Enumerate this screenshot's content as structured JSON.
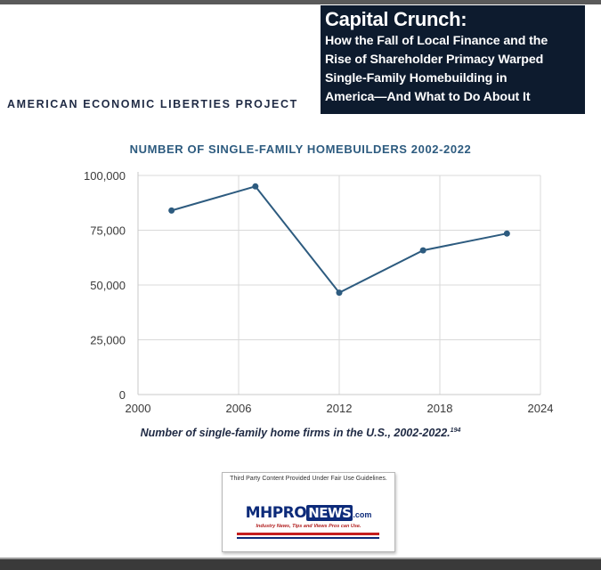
{
  "header": {
    "title": "Capital Crunch:",
    "subtitle_lines": [
      "How the Fall of Local Finance and the",
      "Rise of Shareholder Primacy Warped",
      "Single-Family Homebuilding in",
      "America—And What to Do About It"
    ],
    "organization": "AMERICAN ECONOMIC LIBERTIES PROJECT"
  },
  "chart_data": {
    "type": "line",
    "title": "NUMBER OF SINGLE-FAMILY HOMEBUILDERS 2002-2022",
    "caption": "Number of single-family home firms in the U.S., 2002-2022.",
    "caption_note": "194",
    "x": [
      2002,
      2007,
      2012,
      2017,
      2022
    ],
    "series": [
      {
        "values": [
          84000,
          95000,
          46500,
          65800,
          73500
        ]
      }
    ],
    "xlim": [
      2000,
      2024
    ],
    "ylim": [
      0,
      100000
    ],
    "x_ticks": [
      "2000",
      "2006",
      "2012",
      "2018",
      "2024"
    ],
    "y_ticks": [
      "0",
      "25,000",
      "50,000",
      "75,000",
      "100,000"
    ],
    "grid": true,
    "line_color": "#2d5b7f"
  },
  "badge": {
    "notice": "Third Party Content Provided Under Fair Use Guidelines.",
    "logo_part1": "MHPRO",
    "logo_part2": "NEWS",
    "logo_part3": ".com",
    "tagline": "Industry News, Tips and Views Pros can Use."
  }
}
